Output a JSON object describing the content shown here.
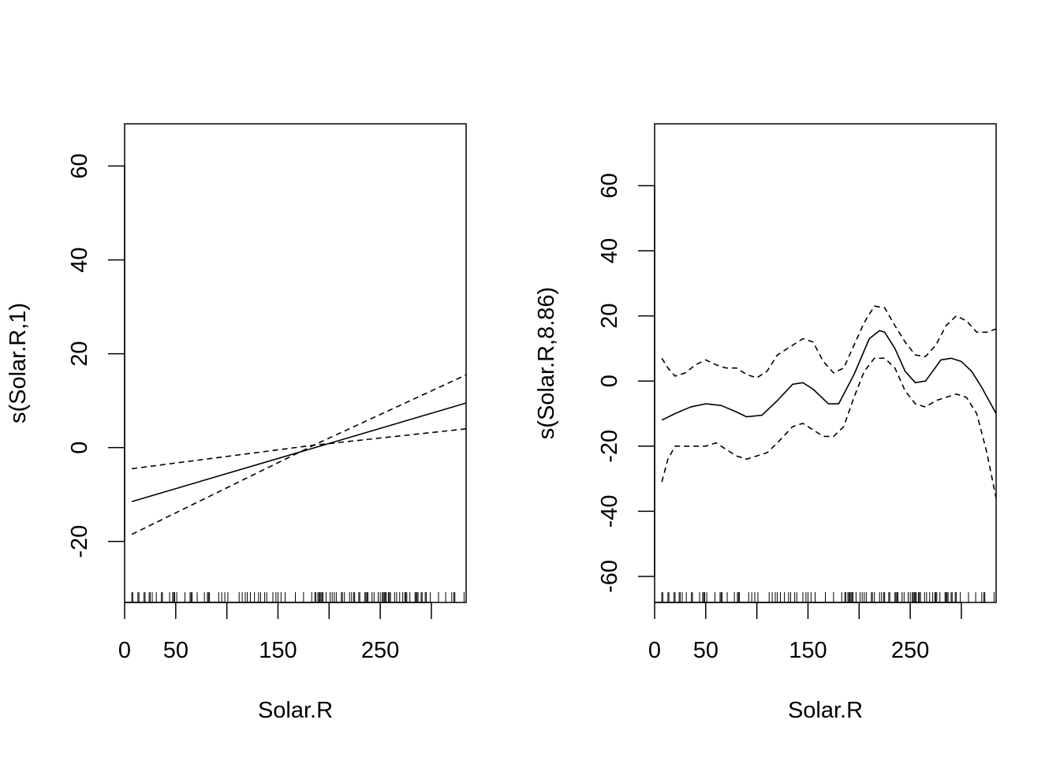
{
  "chart_data": [
    {
      "type": "line",
      "xlabel": "Solar.R",
      "ylabel": "s(Solar.R,1)",
      "xlim": [
        0,
        334
      ],
      "ylim": [
        -33,
        69
      ],
      "x_ticks": [
        0,
        50,
        100,
        150,
        200,
        250,
        300
      ],
      "x_tick_labels": [
        "0",
        "50",
        "",
        "150",
        "",
        "250",
        ""
      ],
      "y_ticks": [
        -20,
        0,
        20,
        40,
        60
      ],
      "y_tick_labels": [
        "-20",
        "0",
        "20",
        "40",
        "60"
      ],
      "grid": false,
      "series": [
        {
          "style": "solid",
          "x": [
            7,
            334
          ],
          "y": [
            -11.5,
            9.5
          ]
        },
        {
          "style": "dashed",
          "x": [
            7,
            185,
            334
          ],
          "y": [
            -4.5,
            0.5,
            4.0
          ]
        },
        {
          "style": "dashed",
          "x": [
            7,
            185,
            334
          ],
          "y": [
            -18.5,
            0.5,
            15.5
          ]
        }
      ],
      "rug": [
        7,
        8,
        13,
        14,
        19,
        20,
        24,
        25,
        27,
        31,
        36,
        37,
        44,
        47,
        48,
        49,
        51,
        59,
        64,
        65,
        66,
        71,
        78,
        81,
        82,
        83,
        92,
        95,
        98,
        101,
        112,
        115,
        118,
        120,
        123,
        127,
        131,
        133,
        137,
        139,
        145,
        148,
        150,
        153,
        157,
        167,
        175,
        183,
        186,
        187,
        189,
        190,
        191,
        192,
        193,
        194,
        197,
        201,
        203,
        205,
        207,
        212,
        213,
        215,
        220,
        222,
        224,
        225,
        229,
        230,
        235,
        236,
        237,
        238,
        242,
        244,
        248,
        250,
        252,
        253,
        254,
        255,
        256,
        258,
        259,
        260,
        264,
        266,
        269,
        272,
        274,
        275,
        276,
        279,
        284,
        285,
        286,
        287,
        290,
        291,
        294,
        295,
        299,
        307,
        314,
        320,
        322,
        323,
        332,
        334
      ]
    },
    {
      "type": "line",
      "xlabel": "Solar.R",
      "ylabel": "s(Solar.R,8.86)",
      "xlim": [
        0,
        334
      ],
      "ylim": [
        -68,
        79
      ],
      "x_ticks": [
        0,
        50,
        100,
        150,
        200,
        250,
        300
      ],
      "x_tick_labels": [
        "0",
        "50",
        "",
        "150",
        "",
        "250",
        ""
      ],
      "y_ticks": [
        -60,
        -40,
        -20,
        0,
        20,
        40,
        60
      ],
      "y_tick_labels": [
        "-60",
        "-40",
        "-20",
        "0",
        "20",
        "40",
        "60"
      ],
      "grid": false,
      "series": [
        {
          "style": "solid",
          "x": [
            7,
            20,
            35,
            50,
            65,
            80,
            90,
            105,
            120,
            135,
            145,
            155,
            170,
            180,
            195,
            210,
            220,
            225,
            235,
            245,
            255,
            265,
            272,
            280,
            290,
            300,
            310,
            320,
            334
          ],
          "y": [
            -12,
            -10,
            -8,
            -7,
            -7.5,
            -9.5,
            -11,
            -10.5,
            -6,
            -1,
            -0.5,
            -2.5,
            -7,
            -7,
            2,
            13,
            15.5,
            15,
            10,
            3,
            -0.5,
            0,
            3,
            6.5,
            7,
            6,
            3,
            -2,
            -10
          ]
        },
        {
          "style": "dashed",
          "x": [
            7,
            13,
            20,
            30,
            40,
            50,
            60,
            70,
            80,
            90,
            100,
            110,
            120,
            135,
            145,
            155,
            165,
            175,
            185,
            195,
            205,
            215,
            225,
            235,
            245,
            255,
            265,
            275,
            285,
            295,
            305,
            315,
            325,
            334
          ],
          "y": [
            7,
            4,
            1.5,
            2.5,
            5,
            6.5,
            5,
            4,
            4,
            2,
            1,
            3,
            8,
            11,
            13,
            12,
            6,
            2.5,
            4,
            11,
            18,
            23,
            22.5,
            17,
            12,
            8,
            7.5,
            11,
            17,
            20,
            18.5,
            15,
            15,
            16
          ]
        },
        {
          "style": "dashed",
          "x": [
            7,
            13,
            20,
            30,
            40,
            50,
            60,
            70,
            80,
            90,
            100,
            110,
            120,
            135,
            145,
            155,
            165,
            175,
            185,
            195,
            205,
            215,
            225,
            235,
            245,
            255,
            265,
            275,
            285,
            295,
            305,
            315,
            325,
            334
          ],
          "y": [
            -31,
            -24,
            -20,
            -20,
            -20,
            -20,
            -19,
            -21,
            -23,
            -24,
            -23,
            -22,
            -19,
            -14,
            -13,
            -15,
            -17,
            -17,
            -14,
            -5,
            3,
            7,
            7,
            4,
            -3,
            -7,
            -8,
            -6,
            -5,
            -4,
            -5,
            -10,
            -22,
            -36
          ]
        }
      ],
      "rug": [
        7,
        8,
        13,
        14,
        19,
        20,
        24,
        25,
        27,
        31,
        36,
        37,
        44,
        47,
        48,
        49,
        51,
        59,
        64,
        65,
        66,
        71,
        78,
        81,
        82,
        83,
        92,
        95,
        98,
        101,
        112,
        115,
        118,
        120,
        123,
        127,
        131,
        133,
        137,
        139,
        145,
        148,
        150,
        153,
        157,
        167,
        175,
        183,
        186,
        187,
        189,
        190,
        191,
        192,
        193,
        194,
        197,
        201,
        203,
        205,
        207,
        212,
        213,
        215,
        220,
        222,
        224,
        225,
        229,
        230,
        235,
        236,
        237,
        238,
        242,
        244,
        248,
        250,
        252,
        253,
        254,
        255,
        256,
        258,
        259,
        260,
        264,
        266,
        269,
        272,
        274,
        275,
        276,
        279,
        284,
        285,
        286,
        287,
        290,
        291,
        294,
        295,
        299,
        307,
        314,
        320,
        322,
        323,
        332,
        334
      ]
    }
  ]
}
